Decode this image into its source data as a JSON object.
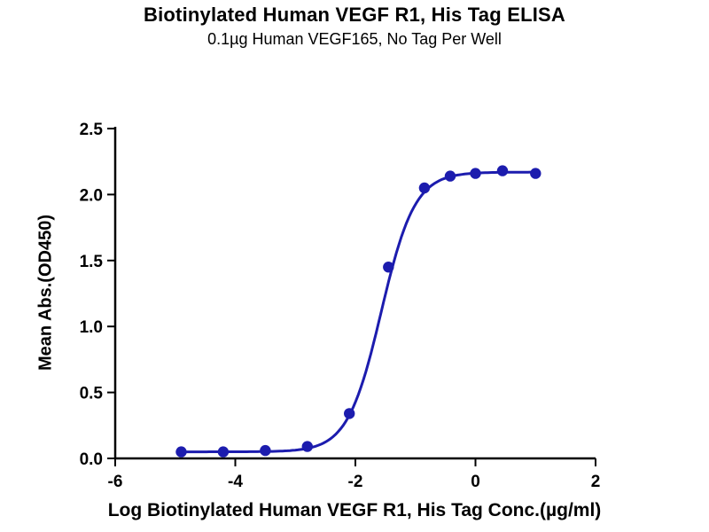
{
  "title": "Biotinylated Human VEGF R1, His Tag ELISA",
  "subtitle": "0.1µg Human VEGF165, No Tag Per Well",
  "chart_data": {
    "type": "scatter",
    "title": "Biotinylated Human VEGF R1, His Tag ELISA",
    "subtitle": "0.1µg Human VEGF165, No Tag Per Well",
    "xlabel": "Log Biotinylated Human VEGF R1, His Tag Conc.(µg/ml)",
    "ylabel": "Mean Abs.(OD450)",
    "xlim": [
      -6,
      2
    ],
    "ylim": [
      0,
      2.5
    ],
    "xticks": [
      "-6",
      "-4",
      "-2",
      "0",
      "2"
    ],
    "yticks": [
      "0.0",
      "0.5",
      "1.0",
      "1.5",
      "2.0",
      "2.5"
    ],
    "grid": false,
    "legend_position": "none",
    "points": {
      "x": [
        -4.9,
        -4.2,
        -3.5,
        -2.8,
        -2.1,
        -1.45,
        -0.85,
        -0.42,
        0.0,
        0.45,
        1.0
      ],
      "y": [
        0.05,
        0.05,
        0.06,
        0.09,
        0.34,
        1.45,
        2.05,
        2.14,
        2.16,
        2.18,
        2.16
      ]
    },
    "curve_fit": {
      "model": "4PL",
      "bottom": 0.05,
      "top": 2.17,
      "logEC50": -1.57,
      "hill": 1.55,
      "x_start": -4.9,
      "x_end": 1.0
    },
    "accent_color": "#1c1cae",
    "axis_color": "#000000"
  }
}
